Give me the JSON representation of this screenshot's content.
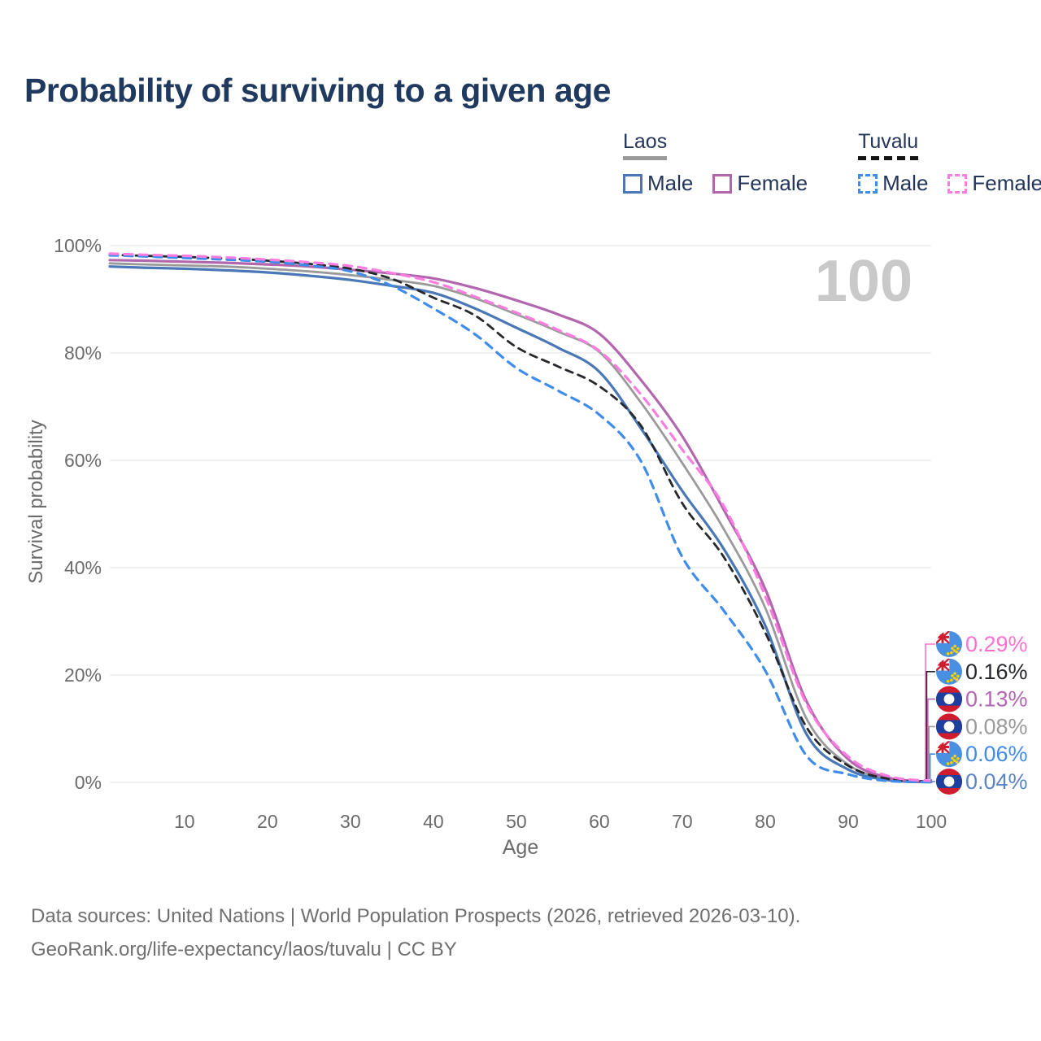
{
  "title": "Probability of surviving to a given age",
  "watermark": "100",
  "legend": {
    "laos": {
      "title": "Laos",
      "male": "Male",
      "female": "Female"
    },
    "tuvalu": {
      "title": "Tuvalu",
      "male": "Male",
      "female": "Female"
    }
  },
  "axes": {
    "y_title": "Survival probability",
    "y_ticks": [
      "0%",
      "20%",
      "40%",
      "60%",
      "80%",
      "100%"
    ],
    "x_ticks": [
      "10",
      "20",
      "30",
      "40",
      "50",
      "60",
      "70",
      "80",
      "90",
      "100"
    ],
    "x_title": "Age"
  },
  "colors": {
    "laos_male": "#4a77b6",
    "laos_female": "#b266ae",
    "laos_total": "#9a9a9a",
    "tuvalu_male": "#3f8ceb",
    "tuvalu_female": "#fc7ce0",
    "tuvalu_total": "#26282b",
    "title_text": "#1f3a5e",
    "axis_text": "#6b6b6b",
    "gridline": "#ececec",
    "watermark": "#c9c9c9",
    "end_label_male_laos": "#5b84c4"
  },
  "end_labels": [
    {
      "series": "Tuvalu Female",
      "flag": "tuvalu",
      "value": "0.29%",
      "color": "#ff70d2"
    },
    {
      "series": "Tuvalu (both sexes)",
      "flag": "tuvalu",
      "value": "0.16%",
      "color": "#26282b"
    },
    {
      "series": "Laos Female",
      "flag": "laos",
      "value": "0.13%",
      "color": "#b565b5"
    },
    {
      "series": "Laos (both sexes)",
      "flag": "laos",
      "value": "0.08%",
      "color": "#9a9a9a"
    },
    {
      "series": "Tuvalu Male",
      "flag": "tuvalu",
      "value": "0.06%",
      "color": "#3f8ceb"
    },
    {
      "series": "Laos Male",
      "flag": "laos",
      "value": "0.04%",
      "color": "#5b84c4"
    }
  ],
  "sources": {
    "line1": "Data sources: United Nations | World Population Prospects (2026, retrieved 2026-03-10).",
    "line2": "GeoRank.org/life-expectancy/laos/tuvalu | CC BY"
  },
  "chart_data": {
    "type": "line",
    "title": "Probability of surviving to a given age",
    "xlabel": "Age",
    "ylabel": "Survival probability",
    "xlim": [
      1,
      100
    ],
    "ylim": [
      0,
      100
    ],
    "grid": "horizontal",
    "legend_position": "top-right",
    "unit": "%",
    "x": [
      1,
      5,
      10,
      15,
      20,
      25,
      30,
      35,
      40,
      45,
      50,
      55,
      60,
      65,
      70,
      75,
      80,
      85,
      90,
      95,
      100
    ],
    "series": [
      {
        "name": "Laos Male",
        "country": "Laos",
        "sex": "Male",
        "style": "solid",
        "color": "#4a77b6",
        "values": [
          96.1,
          95.9,
          95.7,
          95.4,
          95.0,
          94.4,
          93.6,
          92.5,
          91.2,
          88.3,
          84.7,
          81.0,
          76.5,
          66.0,
          54.3,
          43.5,
          29.2,
          8.9,
          2.4,
          0.4,
          0.04
        ]
      },
      {
        "name": "Laos Female",
        "country": "Laos",
        "sex": "Female",
        "style": "solid",
        "color": "#b266ae",
        "values": [
          97.3,
          97.2,
          97.0,
          96.8,
          96.5,
          96.1,
          95.5,
          94.8,
          93.9,
          92.1,
          89.8,
          87.2,
          83.6,
          75.0,
          64.5,
          50.8,
          36.0,
          15.0,
          4.3,
          0.8,
          0.13
        ]
      },
      {
        "name": "Laos (both sexes)",
        "country": "Laos",
        "sex": "Both",
        "style": "solid",
        "color": "#9a9a9a",
        "values": [
          96.7,
          96.5,
          96.3,
          96.1,
          95.7,
          95.2,
          94.5,
          93.6,
          92.5,
          90.2,
          87.2,
          84.0,
          80.2,
          70.8,
          59.5,
          47.2,
          32.5,
          11.8,
          3.3,
          0.6,
          0.08
        ]
      },
      {
        "name": "Tuvalu Male",
        "country": "Tuvalu",
        "sex": "Male",
        "style": "dashed",
        "color": "#3f8ceb",
        "values": [
          98.2,
          98.0,
          97.7,
          97.4,
          97.0,
          96.3,
          95.2,
          92.5,
          88.3,
          83.5,
          77.2,
          73.0,
          68.5,
          59.9,
          42.0,
          32.0,
          20.8,
          4.9,
          1.5,
          0.25,
          0.06
        ]
      },
      {
        "name": "Tuvalu Female",
        "country": "Tuvalu",
        "sex": "Female",
        "style": "dashed",
        "color": "#fc7ce0",
        "values": [
          98.5,
          98.3,
          98.1,
          97.8,
          97.4,
          96.9,
          96.2,
          94.9,
          93.2,
          90.5,
          87.5,
          84.3,
          80.4,
          72.3,
          62.0,
          51.5,
          34.7,
          14.5,
          4.8,
          1.1,
          0.29
        ]
      },
      {
        "name": "Tuvalu (both sexes)",
        "country": "Tuvalu",
        "sex": "Both",
        "style": "dashed",
        "color": "#26282b",
        "values": [
          98.3,
          98.1,
          97.9,
          97.6,
          97.2,
          96.6,
          95.7,
          93.8,
          90.3,
          87.0,
          81.1,
          77.5,
          73.8,
          66.5,
          52.0,
          42.0,
          27.9,
          10.2,
          3.1,
          0.6,
          0.16
        ]
      }
    ]
  }
}
